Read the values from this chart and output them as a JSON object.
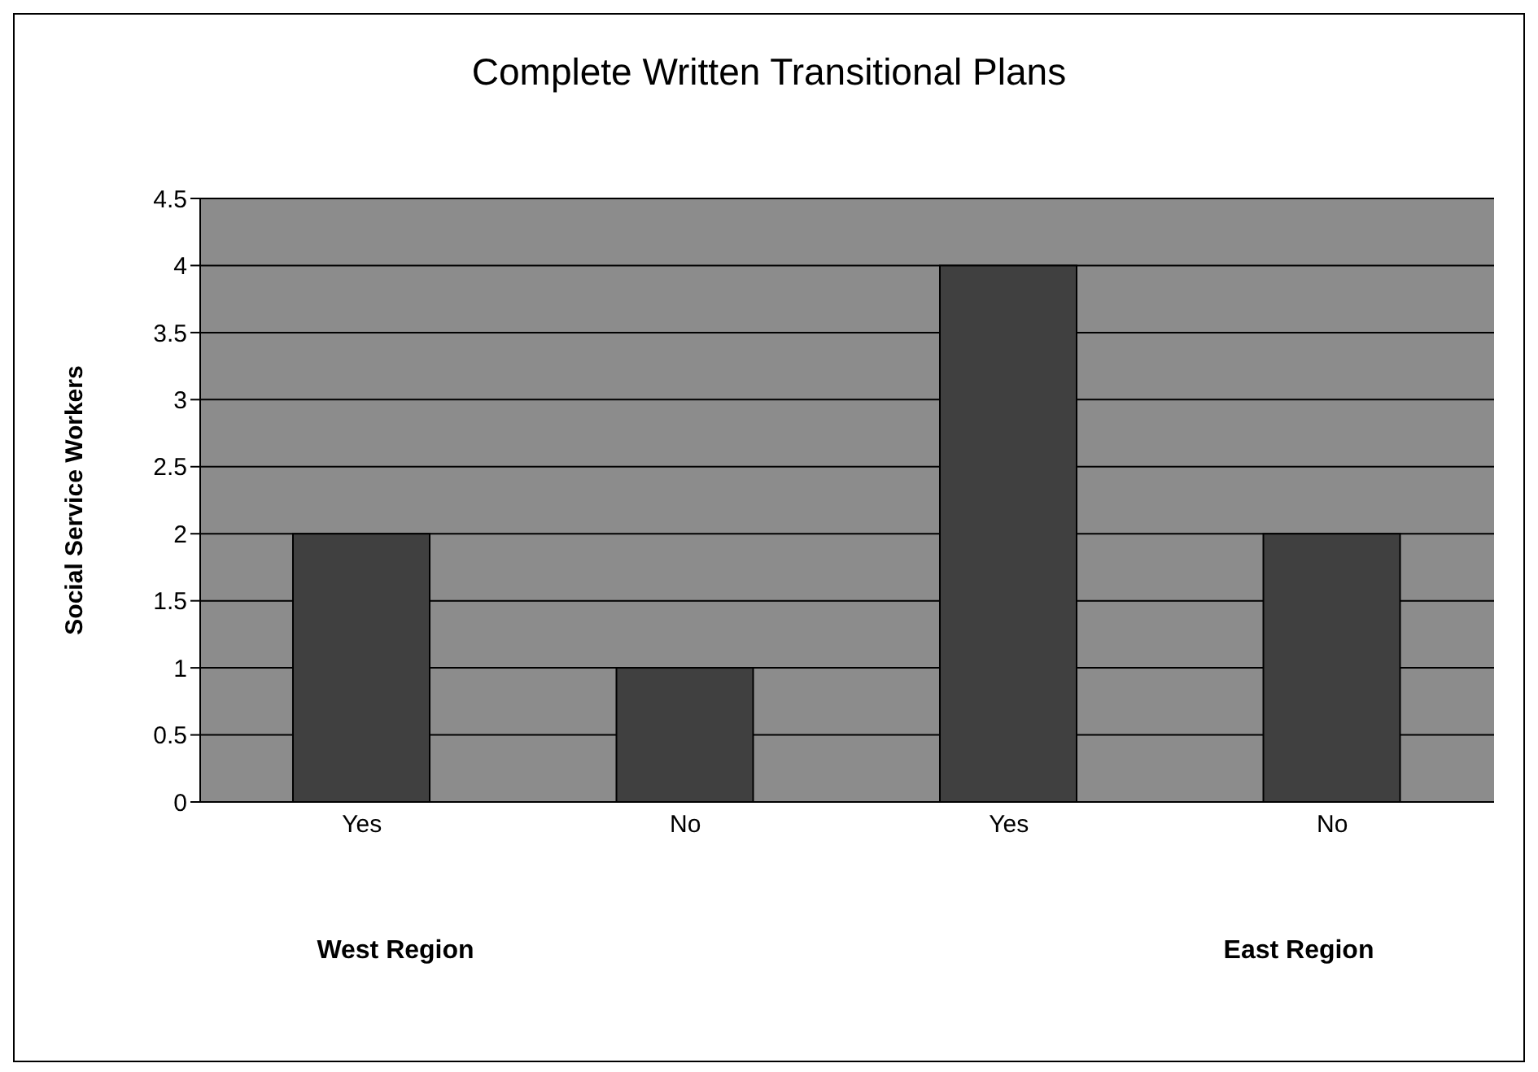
{
  "chart_data": {
    "type": "bar",
    "title": "Complete Written Transitional Plans",
    "ylabel": "Social Service Workers",
    "categories": [
      "Yes",
      "No",
      "Yes",
      "No"
    ],
    "values": [
      2,
      1,
      4,
      2
    ],
    "color": "#404040",
    "ylim": [
      0,
      4.5
    ],
    "yticks": [
      0,
      0.5,
      1,
      1.5,
      2,
      2.5,
      3,
      3.5,
      4,
      4.5
    ],
    "grid": "y",
    "annotations": [
      "West Region",
      "East Region"
    ]
  }
}
